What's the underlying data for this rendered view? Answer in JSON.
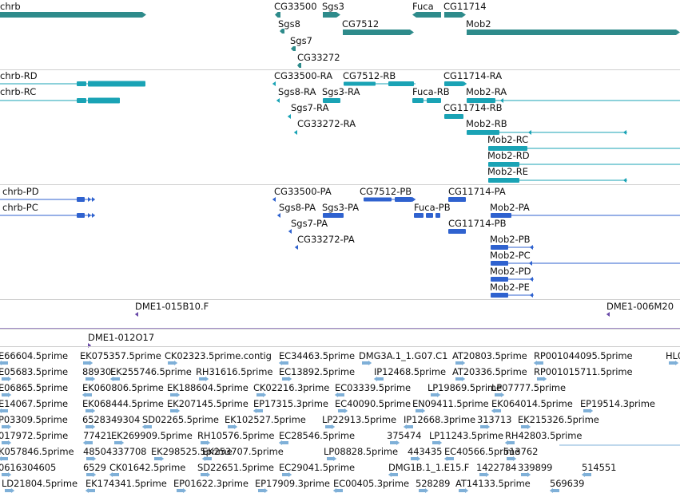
{
  "colors": {
    "gene": "#2e8b8b",
    "transcript_flybase": "#1aa3b5",
    "transcript_model": "#2f62cf",
    "clone": "#6a4aa8",
    "est": "#7fb0d8"
  },
  "tracks": {
    "genes": [
      {
        "name": "chrb"
      },
      {
        "name": "CG33500"
      },
      {
        "name": "Sgs3"
      },
      {
        "name": "Fuca"
      },
      {
        "name": "CG11714"
      },
      {
        "name": "Sgs8"
      },
      {
        "name": "CG7512"
      },
      {
        "name": "Mob2"
      },
      {
        "name": "Sgs7"
      },
      {
        "name": "CG33272"
      }
    ],
    "transcripts_flybase": [
      {
        "name": "chrb-RD"
      },
      {
        "name": "CG33500-RA"
      },
      {
        "name": "CG7512-RB"
      },
      {
        "name": "CG11714-RA"
      },
      {
        "name": "chrb-RC"
      },
      {
        "name": "Sgs8-RA"
      },
      {
        "name": "Sgs3-RA"
      },
      {
        "name": "Fuca-RB"
      },
      {
        "name": "Mob2-RA"
      },
      {
        "name": "Sgs7-RA"
      },
      {
        "name": "CG11714-RB"
      },
      {
        "name": "CG33272-RA"
      },
      {
        "name": "Mob2-RB"
      },
      {
        "name": "Mob2-RC"
      },
      {
        "name": "Mob2-RD"
      },
      {
        "name": "Mob2-RE"
      }
    ],
    "transcripts_model": [
      {
        "name": "chrb-PD"
      },
      {
        "name": "CG33500-PA"
      },
      {
        "name": "CG7512-PB"
      },
      {
        "name": "CG11714-PA"
      },
      {
        "name": "chrb-PC"
      },
      {
        "name": "Sgs8-PA"
      },
      {
        "name": "Sgs3-PA"
      },
      {
        "name": "Fuca-PB"
      },
      {
        "name": "Mob2-PA"
      },
      {
        "name": "Sgs7-PA"
      },
      {
        "name": "CG11714-PB"
      },
      {
        "name": "CG33272-PA"
      },
      {
        "name": "Mob2-PB"
      },
      {
        "name": "Mob2-PC"
      },
      {
        "name": "Mob2-PD"
      },
      {
        "name": "Mob2-PE"
      }
    ],
    "clones": [
      {
        "name": "DME1-015B10.F"
      },
      {
        "name": "DME1-006M20"
      },
      {
        "name": "DME1-012O17"
      }
    ],
    "ests": [
      [
        "E66604.5prime",
        "EK075357.5prime",
        "CK02323.5prime.contig",
        "EC34463.5prime",
        "DMG3A.1_1.G07.C1",
        "AT20803.5prime",
        "RP001044095.5prime",
        "HL0"
      ],
      [
        "E05683.5prime",
        "88930",
        "EK255746.5prime",
        "RH31616.5prime",
        "EC13892.5prime",
        "IP12468.5prime",
        "AT20336.5prime",
        "RP001015711.5prime"
      ],
      [
        "E06865.5prime",
        "EK060806.5prime",
        "EK188604.5prime",
        "CK02216.3prime",
        "EC03339.5prime",
        "LP19869.5prime",
        "LP07777.5prime"
      ],
      [
        "E14067.5prime",
        "EK068444.5prime",
        "EK207145.5prime",
        "EP17315.3prime",
        "EC40090.5prime",
        "EN09411.5prime",
        "EK064014.5prime",
        "EP19514.3prime"
      ],
      [
        "P03309.5prime",
        "6528349304",
        "SD02265.5prime",
        "EK102527.5prime",
        "LP22913.5prime",
        "IP12668.3prime",
        "313713",
        "EK215326.5prime"
      ],
      [
        "017972.5prime",
        "77421",
        "EK269909.5prime",
        "RH10576.5prime",
        "EC28546.5prime",
        "375474",
        "LP11243.5prime",
        "RH42803.5prime"
      ],
      [
        "K057846.5prime",
        "48504337708",
        "EK298525.5prime",
        "EK253707.5prime",
        "LP08828.5prime",
        "443435",
        "EC40566.5prime",
        "513762"
      ],
      [
        "0616304605",
        "6529",
        "CK01642.5prime",
        "SD22651.5prime",
        "EC29041.5prime",
        "DMG1B.1_1.E15.F",
        "1422784",
        "339899",
        "514551"
      ],
      [
        "LD21804.5prime",
        "EK174341.5prime",
        "EP01622.3prime",
        "EP17909.3prime",
        "EC00405.3prime",
        "528289",
        "AT14133.5prime",
        "569639"
      ]
    ]
  }
}
